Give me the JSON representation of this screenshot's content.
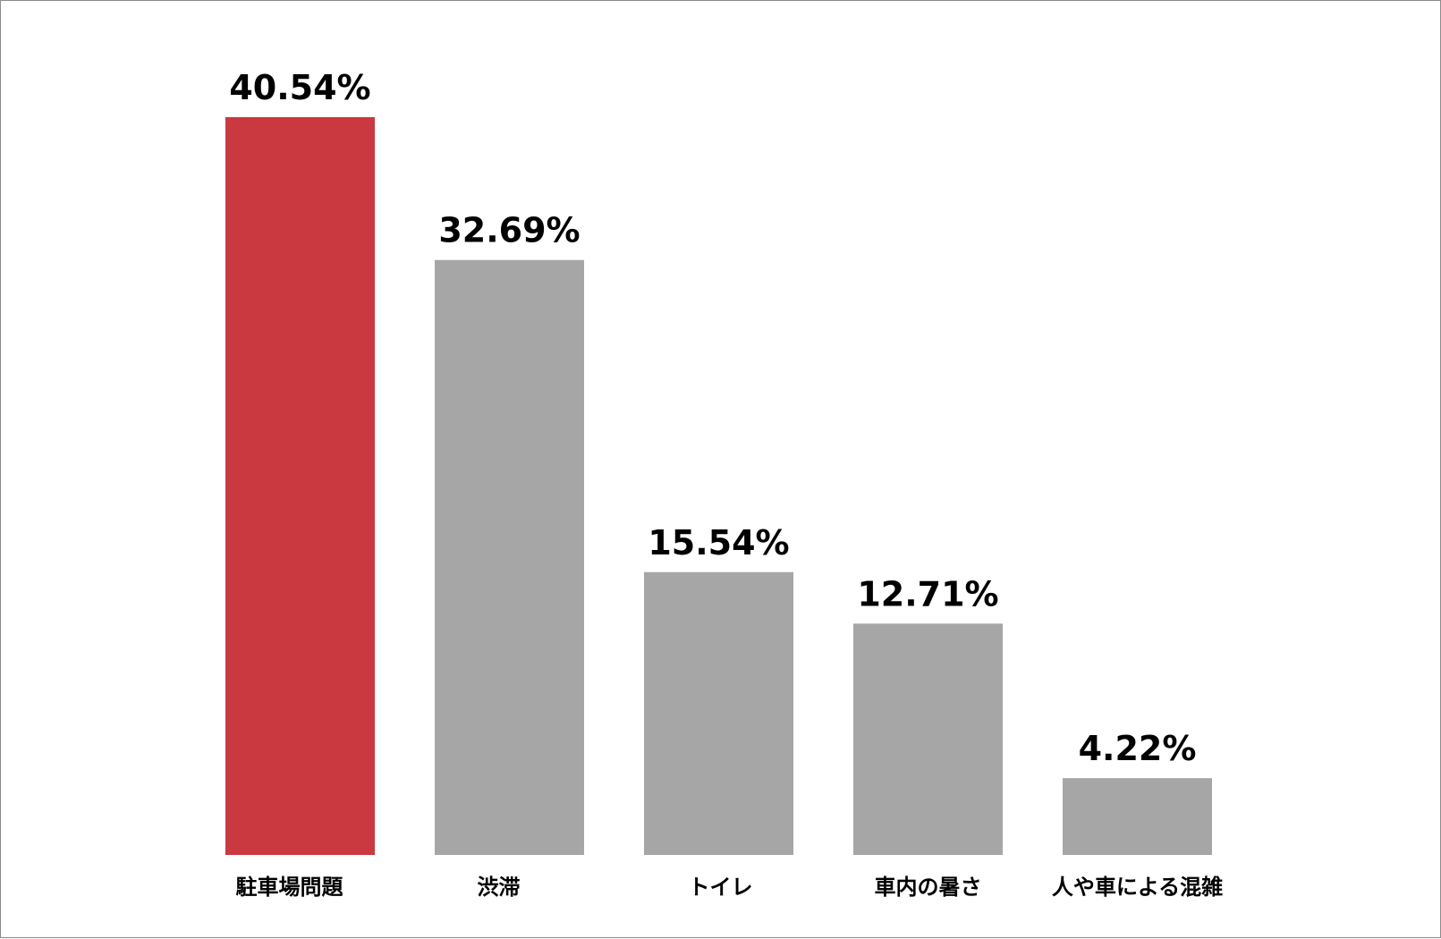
{
  "chart_data": {
    "type": "bar",
    "title": "",
    "xlabel": "",
    "ylabel": "",
    "categories": [
      "駐車場問題",
      "渋滞",
      "トイレ",
      "車内の暑さ",
      "人や車による混雑"
    ],
    "values": [
      40.54,
      32.69,
      15.54,
      12.71,
      4.22
    ],
    "value_labels": [
      "40.54%",
      "32.69%",
      "15.54%",
      "12.71%",
      "4.22%"
    ],
    "unit": "%",
    "ylim": [
      0,
      40.54
    ],
    "grid": false,
    "legend": "none",
    "colors": {
      "highlight": "#c9393f",
      "default": "#a6a6a6"
    },
    "highlight_index": 0
  }
}
